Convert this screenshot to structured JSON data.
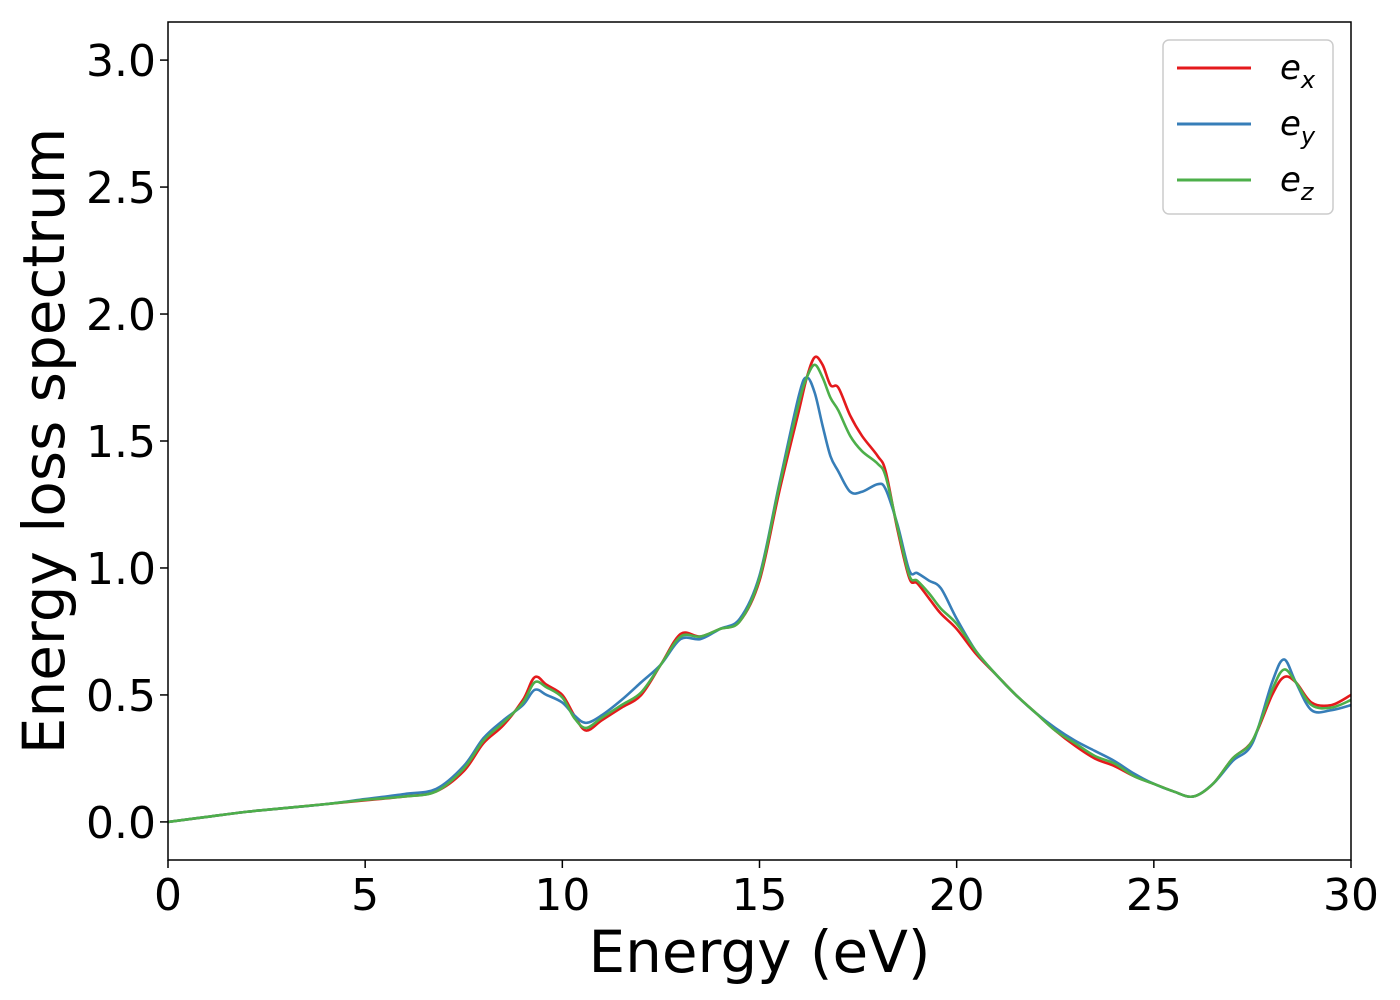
{
  "chart_data": {
    "type": "line",
    "title": "",
    "xlabel": "Energy (eV)",
    "ylabel": "Energy loss spectrum",
    "xlim": [
      0,
      30
    ],
    "ylim": [
      -0.15,
      3.15
    ],
    "xticks": [
      0,
      5,
      10,
      15,
      20,
      25,
      30
    ],
    "yticks": [
      0.0,
      0.5,
      1.0,
      1.5,
      2.0,
      2.5,
      3.0
    ],
    "xtick_labels": [
      "0",
      "5",
      "10",
      "15",
      "20",
      "25",
      "30"
    ],
    "ytick_labels": [
      "0.0",
      "0.5",
      "1.0",
      "1.5",
      "2.0",
      "2.5",
      "3.0"
    ],
    "grid": false,
    "legend_position": "top-right",
    "x": [
      0,
      1,
      2,
      3,
      4,
      5,
      6,
      6.8,
      7.5,
      8,
      8.5,
      9,
      9.3,
      9.6,
      10,
      10.3,
      10.6,
      11,
      11.5,
      12,
      12.5,
      13,
      13.5,
      14,
      14.5,
      15,
      15.5,
      16,
      16.2,
      16.4,
      16.6,
      16.8,
      17,
      17.3,
      17.6,
      18,
      18.2,
      18.5,
      18.8,
      19,
      19.3,
      19.6,
      20,
      20.5,
      21,
      21.5,
      22,
      22.5,
      23,
      23.5,
      24,
      24.5,
      25,
      25.5,
      26,
      26.5,
      27,
      27.5,
      28,
      28.3,
      28.6,
      29,
      29.5,
      30
    ],
    "series": [
      {
        "name": "e_x",
        "label_main": "e",
        "label_sub": "x",
        "color": "#e41a1c",
        "values": [
          0.0,
          0.02,
          0.04,
          0.055,
          0.07,
          0.085,
          0.1,
          0.12,
          0.2,
          0.31,
          0.38,
          0.48,
          0.57,
          0.54,
          0.5,
          0.42,
          0.36,
          0.4,
          0.45,
          0.5,
          0.62,
          0.74,
          0.73,
          0.76,
          0.79,
          0.95,
          1.3,
          1.62,
          1.75,
          1.83,
          1.8,
          1.72,
          1.71,
          1.6,
          1.52,
          1.44,
          1.38,
          1.15,
          0.96,
          0.94,
          0.88,
          0.82,
          0.76,
          0.66,
          0.58,
          0.5,
          0.43,
          0.36,
          0.3,
          0.25,
          0.22,
          0.18,
          0.15,
          0.12,
          0.1,
          0.15,
          0.25,
          0.32,
          0.5,
          0.57,
          0.55,
          0.47,
          0.46,
          0.5
        ]
      },
      {
        "name": "e_y",
        "label_main": "e",
        "label_sub": "y",
        "color": "#377eb8",
        "values": [
          0.0,
          0.02,
          0.04,
          0.055,
          0.07,
          0.09,
          0.11,
          0.13,
          0.22,
          0.33,
          0.4,
          0.46,
          0.52,
          0.5,
          0.47,
          0.42,
          0.39,
          0.42,
          0.48,
          0.55,
          0.62,
          0.72,
          0.72,
          0.76,
          0.8,
          0.97,
          1.33,
          1.68,
          1.75,
          1.69,
          1.56,
          1.44,
          1.38,
          1.3,
          1.3,
          1.33,
          1.31,
          1.17,
          0.99,
          0.98,
          0.95,
          0.92,
          0.8,
          0.67,
          0.58,
          0.5,
          0.43,
          0.37,
          0.32,
          0.28,
          0.24,
          0.19,
          0.15,
          0.12,
          0.1,
          0.15,
          0.24,
          0.31,
          0.55,
          0.64,
          0.55,
          0.44,
          0.44,
          0.46
        ]
      },
      {
        "name": "e_z",
        "label_main": "e",
        "label_sub": "z",
        "color": "#4daf4a",
        "values": [
          0.0,
          0.02,
          0.04,
          0.055,
          0.07,
          0.087,
          0.1,
          0.12,
          0.21,
          0.32,
          0.39,
          0.47,
          0.55,
          0.53,
          0.49,
          0.41,
          0.37,
          0.41,
          0.46,
          0.51,
          0.62,
          0.73,
          0.73,
          0.76,
          0.79,
          0.96,
          1.32,
          1.65,
          1.75,
          1.8,
          1.75,
          1.67,
          1.62,
          1.52,
          1.46,
          1.41,
          1.36,
          1.16,
          0.97,
          0.95,
          0.9,
          0.84,
          0.78,
          0.67,
          0.58,
          0.5,
          0.43,
          0.36,
          0.31,
          0.26,
          0.23,
          0.18,
          0.15,
          0.12,
          0.1,
          0.15,
          0.25,
          0.32,
          0.52,
          0.6,
          0.55,
          0.46,
          0.45,
          0.48
        ]
      }
    ]
  }
}
